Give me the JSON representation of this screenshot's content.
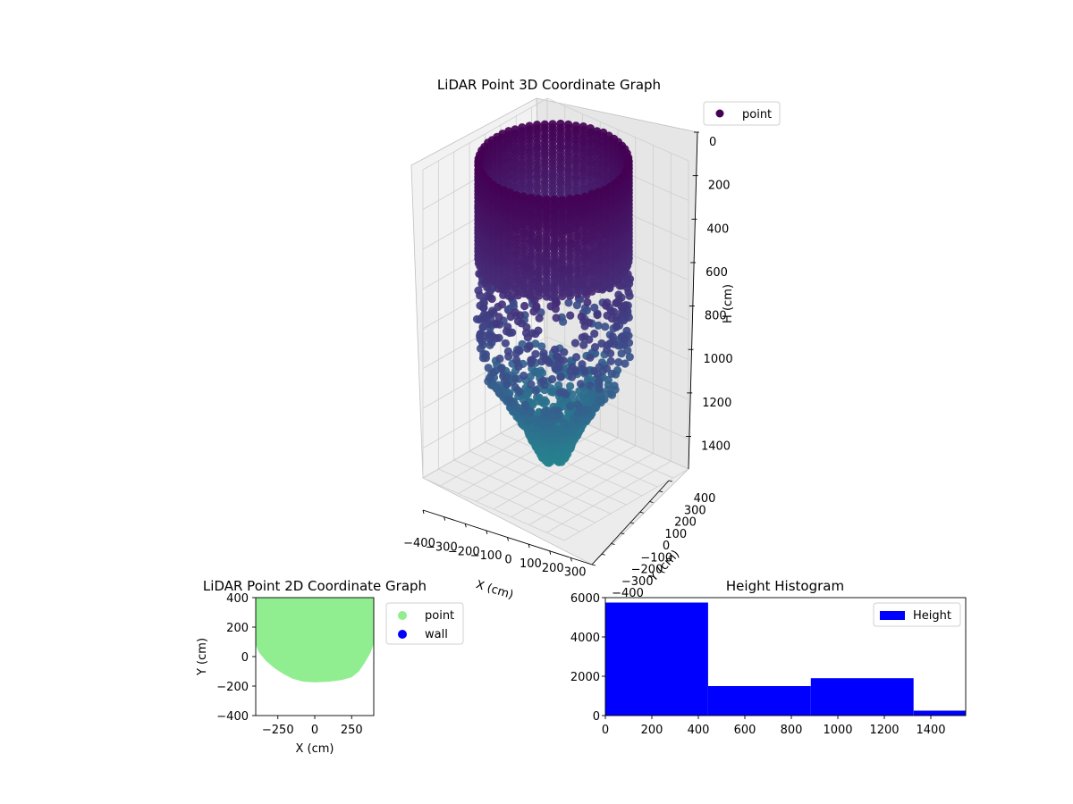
{
  "chart_data": [
    {
      "type": "scatter3d",
      "title": "LiDAR Point 3D Coordinate Graph",
      "xlabel": "X (cm)",
      "ylabel": "Y (cm)",
      "zlabel": "H (cm)",
      "xlim": [
        -400,
        400
      ],
      "ylim": [
        -400,
        400
      ],
      "zlim": [
        0,
        1550
      ],
      "z_inverted": true,
      "x_ticks": [
        "−400",
        "−300",
        "−200",
        "−100",
        "0",
        "100",
        "200",
        "300"
      ],
      "y_ticks": [
        "−400",
        "−300",
        "−200",
        "−100",
        "0",
        "100",
        "200",
        "300",
        "400"
      ],
      "z_ticks": [
        "0",
        "200",
        "400",
        "600",
        "800",
        "1000",
        "1200",
        "1400"
      ],
      "legend": [
        "point"
      ],
      "legend_position": "upper-right outside",
      "colormap": "viridis",
      "cylinder_radius_cm": 320,
      "dense_wall_top_cm": 0,
      "dense_wall_bottom_cm": 500,
      "bowl_bottom_cm": 1470,
      "series": [
        {
          "name": "point",
          "color": "#440154"
        }
      ]
    },
    {
      "type": "scatter",
      "title": "LiDAR Point 2D Coordinate Graph",
      "xlabel": "X (cm)",
      "ylabel": "Y (cm)",
      "xlim": [
        -400,
        400
      ],
      "ylim": [
        -400,
        400
      ],
      "x_ticks": [
        "−250",
        "0",
        "250"
      ],
      "y_ticks": [
        "400",
        "200",
        "0",
        "−200",
        "−400"
      ],
      "legend": [
        "point",
        "wall"
      ],
      "legend_position": "upper-right outside",
      "series": [
        {
          "name": "point",
          "color": "#90ee90",
          "outline": [
            [
              -400,
              400
            ],
            [
              400,
              400
            ],
            [
              400,
              90
            ],
            [
              380,
              30
            ],
            [
              340,
              -40
            ],
            [
              300,
              -100
            ],
            [
              250,
              -140
            ],
            [
              180,
              -160
            ],
            [
              100,
              -170
            ],
            [
              0,
              -175
            ],
            [
              -80,
              -170
            ],
            [
              -150,
              -150
            ],
            [
              -210,
              -120
            ],
            [
              -270,
              -80
            ],
            [
              -330,
              -30
            ],
            [
              -380,
              30
            ],
            [
              -400,
              80
            ]
          ]
        },
        {
          "name": "wall",
          "color": "#0000ff"
        }
      ]
    },
    {
      "type": "bar",
      "title": "Height Histogram",
      "xlabel": "",
      "ylabel": "",
      "xlim": [
        0,
        1550
      ],
      "ylim": [
        0,
        6000
      ],
      "x_ticks": [
        "0",
        "200",
        "400",
        "600",
        "800",
        "1000",
        "1200",
        "1400"
      ],
      "y_ticks": [
        "6000",
        "4000",
        "2000",
        "0"
      ],
      "legend": [
        "Height"
      ],
      "legend_position": "upper-right",
      "color": "#0000ff",
      "bins": [
        {
          "start": 0,
          "end": 442,
          "value": 5750
        },
        {
          "start": 442,
          "end": 884,
          "value": 1500
        },
        {
          "start": 884,
          "end": 1326,
          "value": 1900
        },
        {
          "start": 1326,
          "end": 1550,
          "value": 250
        }
      ]
    }
  ]
}
